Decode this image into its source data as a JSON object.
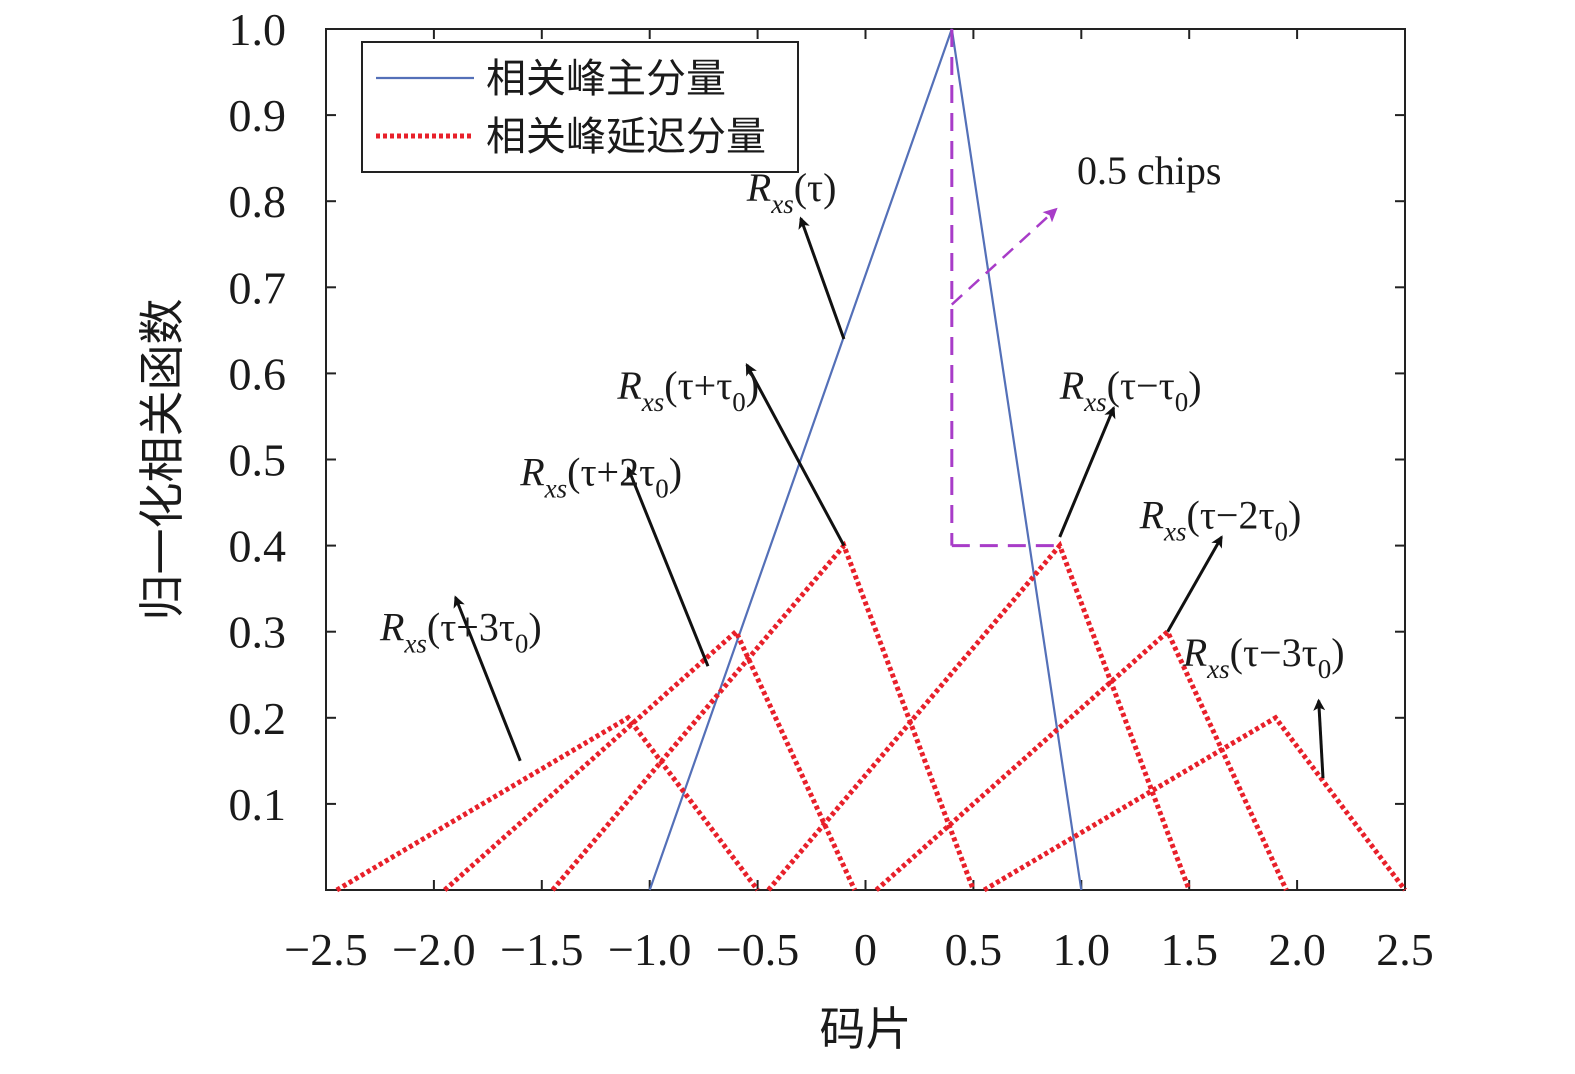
{
  "chart_data": {
    "type": "line",
    "title": "",
    "xlabel": "码片",
    "ylabel": "归一化相关函数",
    "xlim": [
      -2.5,
      2.5
    ],
    "ylim": [
      0,
      1.0
    ],
    "xticks": [
      -2.5,
      -2.0,
      -1.5,
      -1.0,
      -0.5,
      0,
      0.5,
      1.0,
      1.5,
      2.0,
      2.5
    ],
    "xtick_labels": [
      "−2.5",
      "−2.0",
      "−1.5",
      "−1.0",
      "−0.5",
      "0",
      "0.5",
      "1.0",
      "1.5",
      "2.0",
      "2.5"
    ],
    "yticks": [
      0.1,
      0.2,
      0.3,
      0.4,
      0.5,
      0.6,
      0.7,
      0.8,
      0.9,
      1.0
    ],
    "ytick_labels": [
      "0.1",
      "0.2",
      "0.3",
      "0.4",
      "0.5",
      "0.6",
      "0.7",
      "0.8",
      "0.9",
      "1.0"
    ],
    "grid": false,
    "legend": {
      "position": "top-left",
      "entries": [
        {
          "label": "相关峰主分量",
          "color": "#5470b8",
          "style": "solid"
        },
        {
          "label": "相关峰延迟分量",
          "color": "#e8202a",
          "style": "dotted"
        }
      ]
    },
    "series": [
      {
        "name": "相关峰主分量",
        "color": "#5470b8",
        "style": "solid",
        "x": [
          -1.0,
          0.4,
          1.0
        ],
        "y": [
          0,
          1.0,
          0
        ]
      },
      {
        "group": "相关峰延迟分量",
        "color": "#e8202a",
        "style": "dotted",
        "x": [
          -2.45,
          -1.1,
          -0.5
        ],
        "y": [
          0,
          0.2,
          0
        ]
      },
      {
        "group": "相关峰延迟分量",
        "color": "#e8202a",
        "style": "dotted",
        "x": [
          -1.95,
          -0.6,
          -0.05
        ],
        "y": [
          0,
          0.3,
          0
        ]
      },
      {
        "group": "相关峰延迟分量",
        "color": "#e8202a",
        "style": "dotted",
        "x": [
          -1.45,
          -0.1,
          0.5
        ],
        "y": [
          0,
          0.4,
          0
        ]
      },
      {
        "group": "相关峰延迟分量",
        "color": "#e8202a",
        "style": "dotted",
        "x": [
          -0.45,
          0.9,
          1.5
        ],
        "y": [
          0,
          0.4,
          0
        ]
      },
      {
        "group": "相关峰延迟分量",
        "color": "#e8202a",
        "style": "dotted",
        "x": [
          0.05,
          1.4,
          1.95
        ],
        "y": [
          0,
          0.3,
          0
        ]
      },
      {
        "group": "相关峰延迟分量",
        "color": "#e8202a",
        "style": "dotted",
        "x": [
          0.55,
          1.9,
          2.5
        ],
        "y": [
          0,
          0.2,
          0
        ]
      }
    ],
    "guide": {
      "color": "#a83cc8",
      "vertical": {
        "x": 0.4,
        "y": [
          1.0,
          0.4
        ]
      },
      "horizontal": {
        "y": 0.4,
        "x": [
          0.4,
          0.9
        ]
      },
      "arrow_from": [
        0.4,
        0.68
      ],
      "arrow_to": [
        0.88,
        0.79
      ]
    },
    "annotations": [
      {
        "id": "main",
        "text": "0.5 chips",
        "pos": [
          0.98,
          0.82
        ]
      },
      {
        "id": "r0",
        "main": "R",
        "sub": "xs",
        "expr": "(τ)",
        "pos": [
          -0.55,
          0.8
        ],
        "arrow_from": [
          -0.1,
          0.64
        ],
        "arrow_to": [
          -0.3,
          0.78
        ]
      },
      {
        "id": "rp1",
        "main": "R",
        "sub": "xs",
        "expr_parts": [
          "(τ+τ",
          "0",
          ")"
        ],
        "pos": [
          -1.15,
          0.57
        ],
        "arrow_from": [
          -0.1,
          0.4
        ],
        "arrow_to": [
          -0.55,
          0.61
        ]
      },
      {
        "id": "rp2",
        "main": "R",
        "sub": "xs",
        "expr_parts": [
          "(τ+2τ",
          "0",
          ")"
        ],
        "pos": [
          -1.6,
          0.47
        ],
        "arrow_from": [
          -0.73,
          0.26
        ],
        "arrow_to": [
          -1.1,
          0.49
        ]
      },
      {
        "id": "rp3",
        "main": "R",
        "sub": "xs",
        "expr_parts": [
          "(τ+3τ",
          "0",
          ")"
        ],
        "pos": [
          -2.25,
          0.29
        ],
        "arrow_from": [
          -1.6,
          0.15
        ],
        "arrow_to": [
          -1.9,
          0.34
        ]
      },
      {
        "id": "rm1",
        "main": "R",
        "sub": "xs",
        "expr_parts": [
          "(τ−τ",
          "0",
          ")"
        ],
        "pos": [
          0.9,
          0.57
        ],
        "arrow_from": [
          0.9,
          0.41
        ],
        "arrow_to": [
          1.15,
          0.56
        ]
      },
      {
        "id": "rm2",
        "main": "R",
        "sub": "xs",
        "expr_parts": [
          "(τ−2τ",
          "0",
          ")"
        ],
        "pos": [
          1.27,
          0.42
        ],
        "arrow_from": [
          1.4,
          0.3
        ],
        "arrow_to": [
          1.65,
          0.41
        ]
      },
      {
        "id": "rm3",
        "main": "R",
        "sub": "xs",
        "expr_parts": [
          "(τ−3τ",
          "0",
          ")"
        ],
        "pos": [
          1.47,
          0.26
        ],
        "arrow_from": [
          2.12,
          0.13
        ],
        "arrow_to": [
          2.1,
          0.22
        ]
      }
    ]
  }
}
